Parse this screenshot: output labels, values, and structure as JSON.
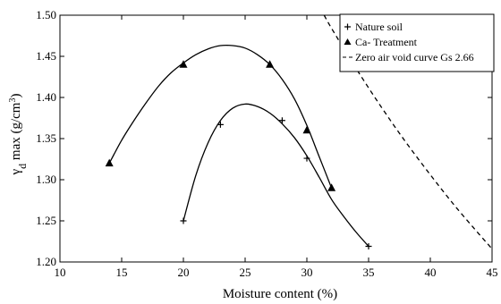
{
  "chart_data": {
    "type": "scatter",
    "title": "",
    "xlabel": "Moisture content (%)",
    "ylabel": {
      "symbol": "γ",
      "subscript": "d",
      "text": " max (g/cm",
      "superscript": "3",
      "close": ")"
    },
    "xlim": [
      10,
      45
    ],
    "ylim": [
      1.2,
      1.5
    ],
    "x_ticks": [
      10,
      15,
      20,
      25,
      30,
      35,
      40,
      45
    ],
    "y_ticks": [
      1.2,
      1.25,
      1.3,
      1.35,
      1.4,
      1.45,
      1.5
    ],
    "x_tick_labels": [
      "10",
      "15",
      "20",
      "25",
      "30",
      "35",
      "40",
      "45"
    ],
    "y_tick_labels": [
      "1.20",
      "1.25",
      "1.30",
      "1.35",
      "1.40",
      "1.45",
      "1.50"
    ],
    "grid": false,
    "legend_position": "top-right",
    "series": [
      {
        "name": "Nature soil",
        "marker": "plus",
        "line": "solid",
        "points": [
          {
            "x": 20,
            "y": 1.25
          },
          {
            "x": 23,
            "y": 1.367
          },
          {
            "x": 28,
            "y": 1.372
          },
          {
            "x": 30,
            "y": 1.326
          },
          {
            "x": 35,
            "y": 1.219
          }
        ],
        "fit": [
          {
            "x": 20,
            "y": 1.25
          },
          {
            "x": 21,
            "y": 1.305
          },
          {
            "x": 22,
            "y": 1.345
          },
          {
            "x": 23,
            "y": 1.372
          },
          {
            "x": 24,
            "y": 1.387
          },
          {
            "x": 25,
            "y": 1.392
          },
          {
            "x": 26,
            "y": 1.389
          },
          {
            "x": 27,
            "y": 1.381
          },
          {
            "x": 28,
            "y": 1.368
          },
          {
            "x": 29,
            "y": 1.351
          },
          {
            "x": 30,
            "y": 1.329
          },
          {
            "x": 31,
            "y": 1.303
          },
          {
            "x": 32,
            "y": 1.276
          },
          {
            "x": 33,
            "y": 1.255
          },
          {
            "x": 34,
            "y": 1.236
          },
          {
            "x": 35,
            "y": 1.219
          }
        ]
      },
      {
        "name": "Ca- Treatment",
        "marker": "triangle",
        "line": "solid",
        "points": [
          {
            "x": 14,
            "y": 1.32
          },
          {
            "x": 20,
            "y": 1.44
          },
          {
            "x": 27,
            "y": 1.44
          },
          {
            "x": 30,
            "y": 1.36
          },
          {
            "x": 32,
            "y": 1.29
          }
        ],
        "fit": [
          {
            "x": 14,
            "y": 1.32
          },
          {
            "x": 15,
            "y": 1.348
          },
          {
            "x": 16,
            "y": 1.372
          },
          {
            "x": 17,
            "y": 1.394
          },
          {
            "x": 18,
            "y": 1.414
          },
          {
            "x": 19,
            "y": 1.43
          },
          {
            "x": 20,
            "y": 1.442
          },
          {
            "x": 21,
            "y": 1.452
          },
          {
            "x": 22,
            "y": 1.459
          },
          {
            "x": 23,
            "y": 1.463
          },
          {
            "x": 24,
            "y": 1.463
          },
          {
            "x": 25,
            "y": 1.46
          },
          {
            "x": 26,
            "y": 1.452
          },
          {
            "x": 27,
            "y": 1.44
          },
          {
            "x": 28,
            "y": 1.422
          },
          {
            "x": 29,
            "y": 1.398
          },
          {
            "x": 30,
            "y": 1.366
          },
          {
            "x": 31,
            "y": 1.328
          },
          {
            "x": 32,
            "y": 1.29
          }
        ]
      },
      {
        "name": "Zero air void curve Gs 2.66",
        "marker": "none",
        "line": "dashed",
        "points": [
          {
            "x": 31.4,
            "y": 1.5
          },
          {
            "x": 32,
            "y": 1.484
          },
          {
            "x": 34,
            "y": 1.435
          },
          {
            "x": 36,
            "y": 1.389
          },
          {
            "x": 38,
            "y": 1.346
          },
          {
            "x": 40,
            "y": 1.306
          },
          {
            "x": 42,
            "y": 1.268
          },
          {
            "x": 44,
            "y": 1.233
          },
          {
            "x": 45,
            "y": 1.216
          }
        ]
      }
    ]
  }
}
